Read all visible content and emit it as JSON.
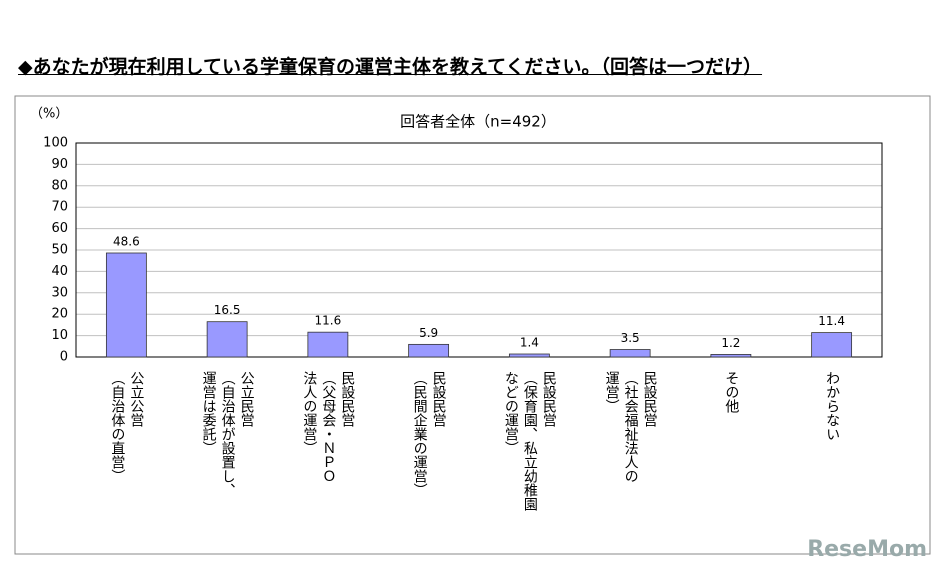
{
  "header": {
    "title": "◆あなたが現在利用している学童保育の運営主体を教えてください。（回答は一つだけ）"
  },
  "chart_data": {
    "type": "bar",
    "title": "回答者全体（n=492）",
    "y_label": "（%）",
    "categories": [
      "公立公営\n（自治体の直営）",
      "公立民営\n（自治体が設置し、\n運営は委託）",
      "民設民営\n（父母会・ＮＰＯ\n法人の運営）",
      "民設民営\n（民間企業の運営）",
      "民設民営\n（保育園、私立幼稚園\nなどの運営）",
      "民設民営\n（社会福祉法人の\n運営）",
      "その他",
      "わからない"
    ],
    "values": [
      48.6,
      16.5,
      11.6,
      5.9,
      1.4,
      3.5,
      1.2,
      11.4
    ],
    "color": "#9999ff",
    "ylim": [
      0,
      100
    ],
    "yticks": [
      0,
      10,
      20,
      30,
      40,
      50,
      60,
      70,
      80,
      90,
      100
    ],
    "grid": true
  },
  "watermark": "ReseMom"
}
